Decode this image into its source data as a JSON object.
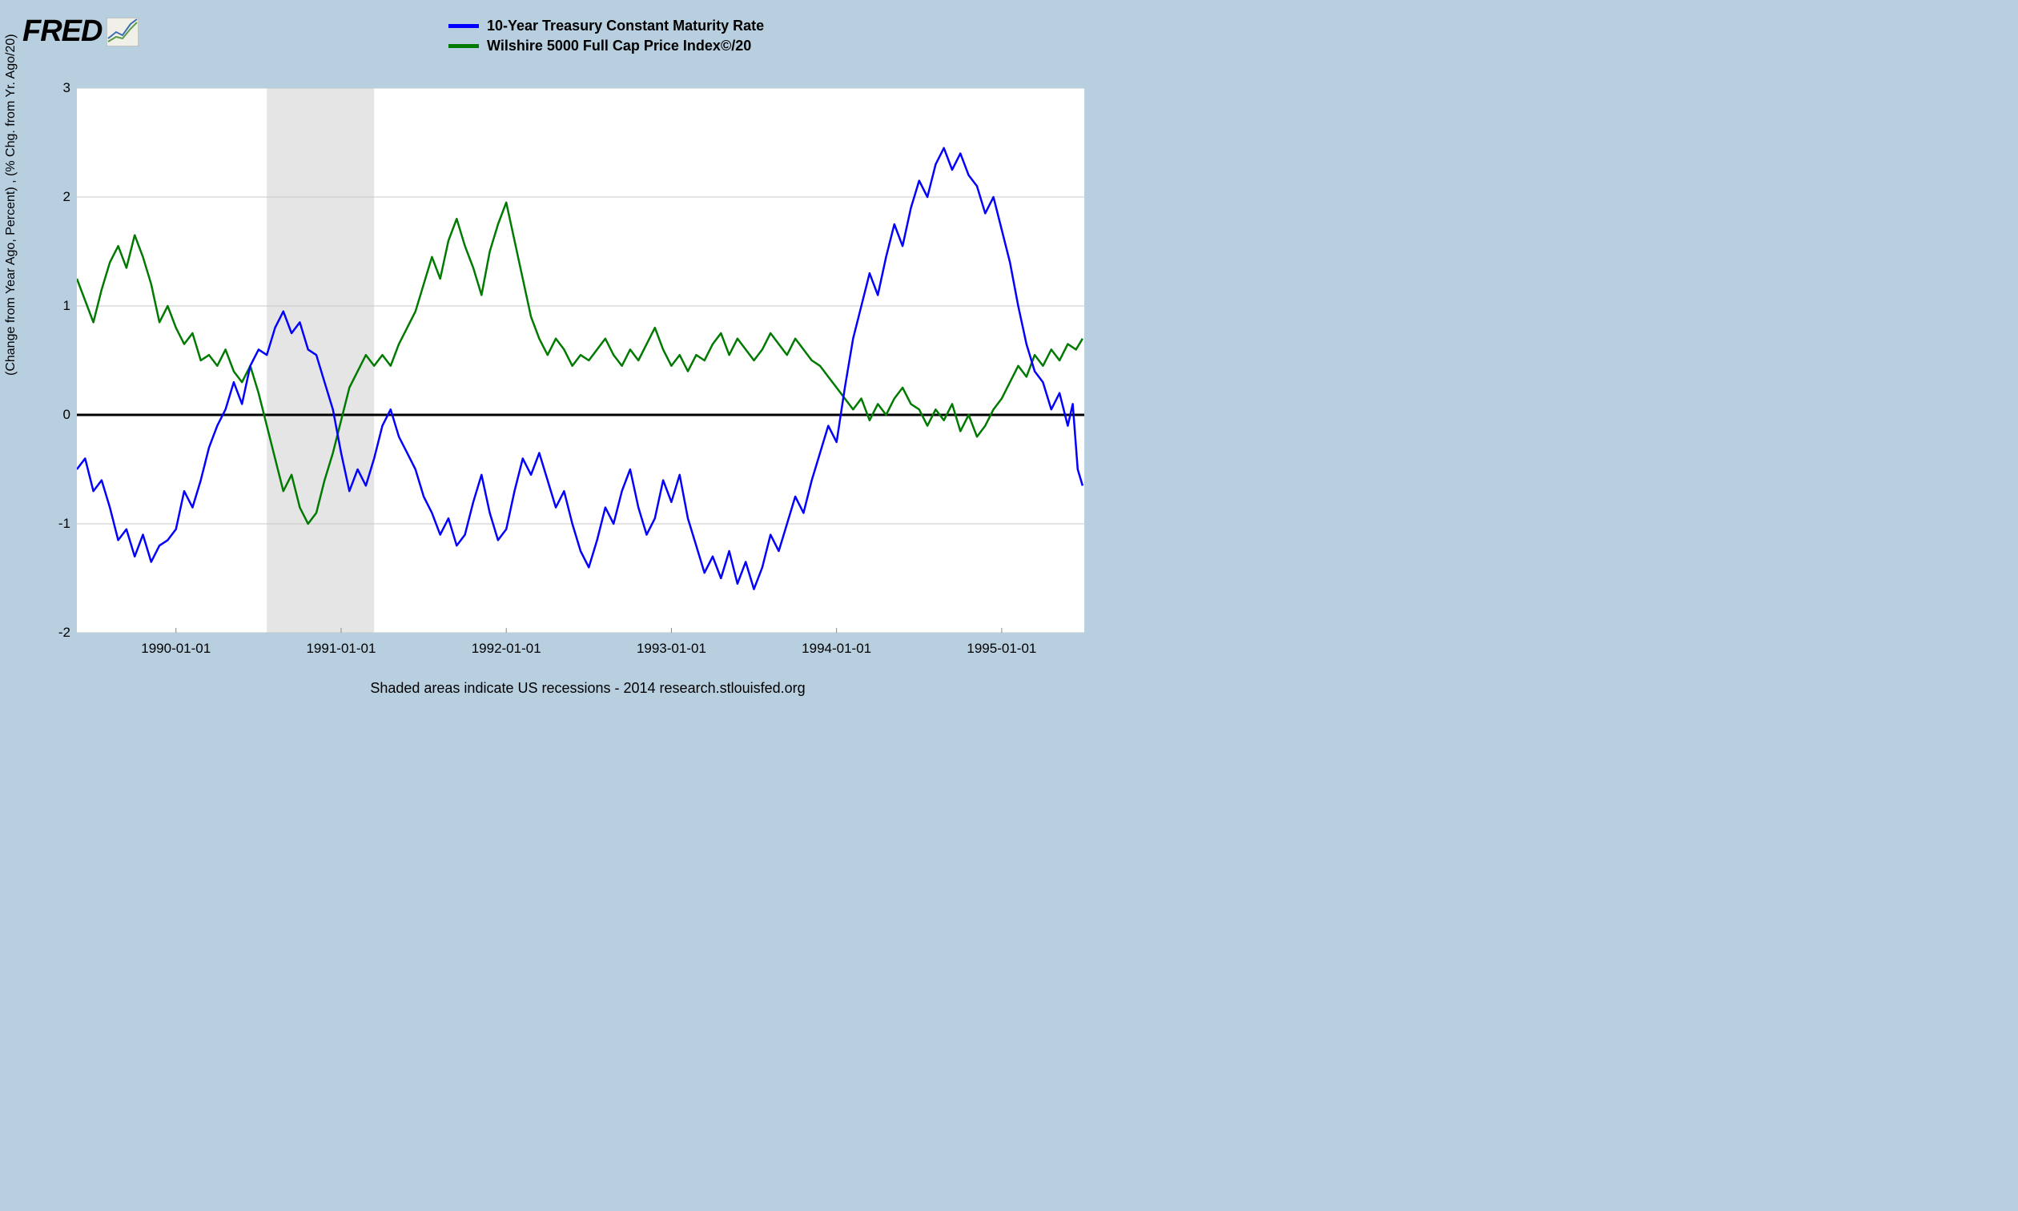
{
  "logo_text": "FRED",
  "legend": {
    "series1": {
      "label": "10-Year Treasury Constant Maturity Rate",
      "color": "#0300ff"
    },
    "series2": {
      "label": "Wilshire 5000 Full Cap Price Index©/20",
      "color": "#007a00"
    }
  },
  "ylabel": "(Change from Year Ago, Percent) , (% Chg. from Yr. Ago/20)",
  "footer": "Shaded areas indicate US recessions - 2014 research.stlouisfed.org",
  "chart": {
    "type": "line",
    "background_color": "#ffffff",
    "page_background": "#b8cfe0",
    "grid_color": "#c8c8c8",
    "zero_line_color": "#000000",
    "zero_line_width": 3,
    "line_width": 2.5,
    "ylim": [
      -2,
      3
    ],
    "yticks": [
      -2,
      -1,
      0,
      1,
      2,
      3
    ],
    "x_domain": [
      1989.4,
      1995.5
    ],
    "xticks": [
      {
        "pos": 1990.0,
        "label": "1990-01-01"
      },
      {
        "pos": 1991.0,
        "label": "1991-01-01"
      },
      {
        "pos": 1992.0,
        "label": "1992-01-01"
      },
      {
        "pos": 1993.0,
        "label": "1993-01-01"
      },
      {
        "pos": 1994.0,
        "label": "1994-01-01"
      },
      {
        "pos": 1995.0,
        "label": "1995-01-01"
      }
    ],
    "recession_band": {
      "start": 1990.55,
      "end": 1991.2,
      "color": "#e5e5e5"
    },
    "series1": {
      "color": "#0300ff",
      "points": [
        [
          1989.4,
          -0.5
        ],
        [
          1989.45,
          -0.4
        ],
        [
          1989.5,
          -0.7
        ],
        [
          1989.55,
          -0.6
        ],
        [
          1989.6,
          -0.85
        ],
        [
          1989.65,
          -1.15
        ],
        [
          1989.7,
          -1.05
        ],
        [
          1989.75,
          -1.3
        ],
        [
          1989.8,
          -1.1
        ],
        [
          1989.85,
          -1.35
        ],
        [
          1989.9,
          -1.2
        ],
        [
          1989.95,
          -1.15
        ],
        [
          1990.0,
          -1.05
        ],
        [
          1990.05,
          -0.7
        ],
        [
          1990.1,
          -0.85
        ],
        [
          1990.15,
          -0.6
        ],
        [
          1990.2,
          -0.3
        ],
        [
          1990.25,
          -0.1
        ],
        [
          1990.3,
          0.05
        ],
        [
          1990.35,
          0.3
        ],
        [
          1990.4,
          0.1
        ],
        [
          1990.45,
          0.45
        ],
        [
          1990.5,
          0.6
        ],
        [
          1990.55,
          0.55
        ],
        [
          1990.6,
          0.8
        ],
        [
          1990.65,
          0.95
        ],
        [
          1990.7,
          0.75
        ],
        [
          1990.75,
          0.85
        ],
        [
          1990.8,
          0.6
        ],
        [
          1990.85,
          0.55
        ],
        [
          1990.9,
          0.3
        ],
        [
          1990.95,
          0.05
        ],
        [
          1991.0,
          -0.35
        ],
        [
          1991.05,
          -0.7
        ],
        [
          1991.1,
          -0.5
        ],
        [
          1991.15,
          -0.65
        ],
        [
          1991.2,
          -0.4
        ],
        [
          1991.25,
          -0.1
        ],
        [
          1991.3,
          0.05
        ],
        [
          1991.35,
          -0.2
        ],
        [
          1991.4,
          -0.35
        ],
        [
          1991.45,
          -0.5
        ],
        [
          1991.5,
          -0.75
        ],
        [
          1991.55,
          -0.9
        ],
        [
          1991.6,
          -1.1
        ],
        [
          1991.65,
          -0.95
        ],
        [
          1991.7,
          -1.2
        ],
        [
          1991.75,
          -1.1
        ],
        [
          1991.8,
          -0.8
        ],
        [
          1991.85,
          -0.55
        ],
        [
          1991.9,
          -0.9
        ],
        [
          1991.95,
          -1.15
        ],
        [
          1992.0,
          -1.05
        ],
        [
          1992.05,
          -0.7
        ],
        [
          1992.1,
          -0.4
        ],
        [
          1992.15,
          -0.55
        ],
        [
          1992.2,
          -0.35
        ],
        [
          1992.25,
          -0.6
        ],
        [
          1992.3,
          -0.85
        ],
        [
          1992.35,
          -0.7
        ],
        [
          1992.4,
          -1.0
        ],
        [
          1992.45,
          -1.25
        ],
        [
          1992.5,
          -1.4
        ],
        [
          1992.55,
          -1.15
        ],
        [
          1992.6,
          -0.85
        ],
        [
          1992.65,
          -1.0
        ],
        [
          1992.7,
          -0.7
        ],
        [
          1992.75,
          -0.5
        ],
        [
          1992.8,
          -0.85
        ],
        [
          1992.85,
          -1.1
        ],
        [
          1992.9,
          -0.95
        ],
        [
          1992.95,
          -0.6
        ],
        [
          1993.0,
          -0.8
        ],
        [
          1993.05,
          -0.55
        ],
        [
          1993.1,
          -0.95
        ],
        [
          1993.15,
          -1.2
        ],
        [
          1993.2,
          -1.45
        ],
        [
          1993.25,
          -1.3
        ],
        [
          1993.3,
          -1.5
        ],
        [
          1993.35,
          -1.25
        ],
        [
          1993.4,
          -1.55
        ],
        [
          1993.45,
          -1.35
        ],
        [
          1993.5,
          -1.6
        ],
        [
          1993.55,
          -1.4
        ],
        [
          1993.6,
          -1.1
        ],
        [
          1993.65,
          -1.25
        ],
        [
          1993.7,
          -1.0
        ],
        [
          1993.75,
          -0.75
        ],
        [
          1993.8,
          -0.9
        ],
        [
          1993.85,
          -0.6
        ],
        [
          1993.9,
          -0.35
        ],
        [
          1993.95,
          -0.1
        ],
        [
          1994.0,
          -0.25
        ],
        [
          1994.05,
          0.25
        ],
        [
          1994.1,
          0.7
        ],
        [
          1994.15,
          1.0
        ],
        [
          1994.2,
          1.3
        ],
        [
          1994.25,
          1.1
        ],
        [
          1994.3,
          1.45
        ],
        [
          1994.35,
          1.75
        ],
        [
          1994.4,
          1.55
        ],
        [
          1994.45,
          1.9
        ],
        [
          1994.5,
          2.15
        ],
        [
          1994.55,
          2.0
        ],
        [
          1994.6,
          2.3
        ],
        [
          1994.65,
          2.45
        ],
        [
          1994.7,
          2.25
        ],
        [
          1994.75,
          2.4
        ],
        [
          1994.8,
          2.2
        ],
        [
          1994.85,
          2.1
        ],
        [
          1994.9,
          1.85
        ],
        [
          1994.95,
          2.0
        ],
        [
          1995.0,
          1.7
        ],
        [
          1995.05,
          1.4
        ],
        [
          1995.1,
          1.0
        ],
        [
          1995.15,
          0.65
        ],
        [
          1995.2,
          0.4
        ],
        [
          1995.25,
          0.3
        ],
        [
          1995.3,
          0.05
        ],
        [
          1995.35,
          0.2
        ],
        [
          1995.4,
          -0.1
        ],
        [
          1995.43,
          0.1
        ],
        [
          1995.46,
          -0.5
        ],
        [
          1995.49,
          -0.65
        ]
      ]
    },
    "series2": {
      "color": "#007a00",
      "points": [
        [
          1989.4,
          1.25
        ],
        [
          1989.45,
          1.05
        ],
        [
          1989.5,
          0.85
        ],
        [
          1989.55,
          1.15
        ],
        [
          1989.6,
          1.4
        ],
        [
          1989.65,
          1.55
        ],
        [
          1989.7,
          1.35
        ],
        [
          1989.75,
          1.65
        ],
        [
          1989.8,
          1.45
        ],
        [
          1989.85,
          1.2
        ],
        [
          1989.9,
          0.85
        ],
        [
          1989.95,
          1.0
        ],
        [
          1990.0,
          0.8
        ],
        [
          1990.05,
          0.65
        ],
        [
          1990.1,
          0.75
        ],
        [
          1990.15,
          0.5
        ],
        [
          1990.2,
          0.55
        ],
        [
          1990.25,
          0.45
        ],
        [
          1990.3,
          0.6
        ],
        [
          1990.35,
          0.4
        ],
        [
          1990.4,
          0.3
        ],
        [
          1990.45,
          0.45
        ],
        [
          1990.5,
          0.2
        ],
        [
          1990.55,
          -0.1
        ],
        [
          1990.6,
          -0.4
        ],
        [
          1990.65,
          -0.7
        ],
        [
          1990.7,
          -0.55
        ],
        [
          1990.75,
          -0.85
        ],
        [
          1990.8,
          -1.0
        ],
        [
          1990.85,
          -0.9
        ],
        [
          1990.9,
          -0.6
        ],
        [
          1990.95,
          -0.35
        ],
        [
          1991.0,
          -0.05
        ],
        [
          1991.05,
          0.25
        ],
        [
          1991.1,
          0.4
        ],
        [
          1991.15,
          0.55
        ],
        [
          1991.2,
          0.45
        ],
        [
          1991.25,
          0.55
        ],
        [
          1991.3,
          0.45
        ],
        [
          1991.35,
          0.65
        ],
        [
          1991.4,
          0.8
        ],
        [
          1991.45,
          0.95
        ],
        [
          1991.5,
          1.2
        ],
        [
          1991.55,
          1.45
        ],
        [
          1991.6,
          1.25
        ],
        [
          1991.65,
          1.6
        ],
        [
          1991.7,
          1.8
        ],
        [
          1991.75,
          1.55
        ],
        [
          1991.8,
          1.35
        ],
        [
          1991.85,
          1.1
        ],
        [
          1991.9,
          1.5
        ],
        [
          1991.95,
          1.75
        ],
        [
          1992.0,
          1.95
        ],
        [
          1992.05,
          1.6
        ],
        [
          1992.1,
          1.25
        ],
        [
          1992.15,
          0.9
        ],
        [
          1992.2,
          0.7
        ],
        [
          1992.25,
          0.55
        ],
        [
          1992.3,
          0.7
        ],
        [
          1992.35,
          0.6
        ],
        [
          1992.4,
          0.45
        ],
        [
          1992.45,
          0.55
        ],
        [
          1992.5,
          0.5
        ],
        [
          1992.55,
          0.6
        ],
        [
          1992.6,
          0.7
        ],
        [
          1992.65,
          0.55
        ],
        [
          1992.7,
          0.45
        ],
        [
          1992.75,
          0.6
        ],
        [
          1992.8,
          0.5
        ],
        [
          1992.85,
          0.65
        ],
        [
          1992.9,
          0.8
        ],
        [
          1992.95,
          0.6
        ],
        [
          1993.0,
          0.45
        ],
        [
          1993.05,
          0.55
        ],
        [
          1993.1,
          0.4
        ],
        [
          1993.15,
          0.55
        ],
        [
          1993.2,
          0.5
        ],
        [
          1993.25,
          0.65
        ],
        [
          1993.3,
          0.75
        ],
        [
          1993.35,
          0.55
        ],
        [
          1993.4,
          0.7
        ],
        [
          1993.45,
          0.6
        ],
        [
          1993.5,
          0.5
        ],
        [
          1993.55,
          0.6
        ],
        [
          1993.6,
          0.75
        ],
        [
          1993.65,
          0.65
        ],
        [
          1993.7,
          0.55
        ],
        [
          1993.75,
          0.7
        ],
        [
          1993.8,
          0.6
        ],
        [
          1993.85,
          0.5
        ],
        [
          1993.9,
          0.45
        ],
        [
          1993.95,
          0.35
        ],
        [
          1994.0,
          0.25
        ],
        [
          1994.05,
          0.15
        ],
        [
          1994.1,
          0.05
        ],
        [
          1994.15,
          0.15
        ],
        [
          1994.2,
          -0.05
        ],
        [
          1994.25,
          0.1
        ],
        [
          1994.3,
          0.0
        ],
        [
          1994.35,
          0.15
        ],
        [
          1994.4,
          0.25
        ],
        [
          1994.45,
          0.1
        ],
        [
          1994.5,
          0.05
        ],
        [
          1994.55,
          -0.1
        ],
        [
          1994.6,
          0.05
        ],
        [
          1994.65,
          -0.05
        ],
        [
          1994.7,
          0.1
        ],
        [
          1994.75,
          -0.15
        ],
        [
          1994.8,
          0.0
        ],
        [
          1994.85,
          -0.2
        ],
        [
          1994.9,
          -0.1
        ],
        [
          1994.95,
          0.05
        ],
        [
          1995.0,
          0.15
        ],
        [
          1995.05,
          0.3
        ],
        [
          1995.1,
          0.45
        ],
        [
          1995.15,
          0.35
        ],
        [
          1995.2,
          0.55
        ],
        [
          1995.25,
          0.45
        ],
        [
          1995.3,
          0.6
        ],
        [
          1995.35,
          0.5
        ],
        [
          1995.4,
          0.65
        ],
        [
          1995.45,
          0.6
        ],
        [
          1995.49,
          0.7
        ]
      ]
    }
  }
}
